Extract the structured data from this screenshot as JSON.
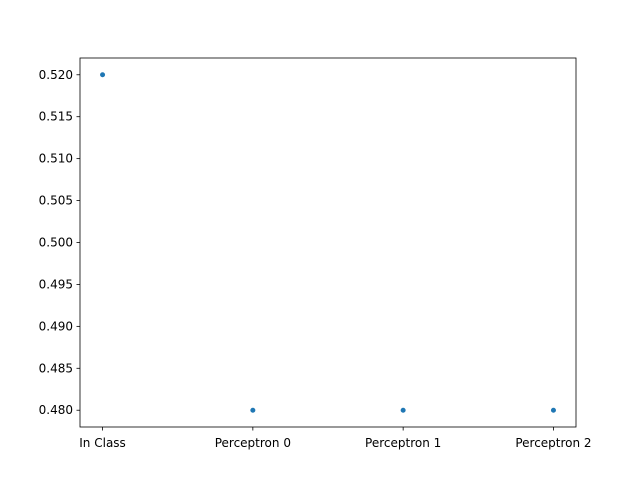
{
  "chart_data": {
    "type": "scatter",
    "title": "",
    "xlabel": "",
    "ylabel": "",
    "categories": [
      "In Class",
      "Perceptron 0",
      "Perceptron 1",
      "Perceptron 2"
    ],
    "series": [
      {
        "values": [
          0.52,
          0.48,
          0.48,
          0.48
        ]
      }
    ],
    "ylim": [
      0.478,
      0.522
    ],
    "yticks": [
      "0.480",
      "0.485",
      "0.490",
      "0.495",
      "0.500",
      "0.505",
      "0.510",
      "0.515",
      "0.520"
    ],
    "grid": false,
    "legend": "none",
    "colors": {
      "marker": "#1f77b4",
      "axis": "#000000",
      "background": "#ffffff"
    }
  }
}
